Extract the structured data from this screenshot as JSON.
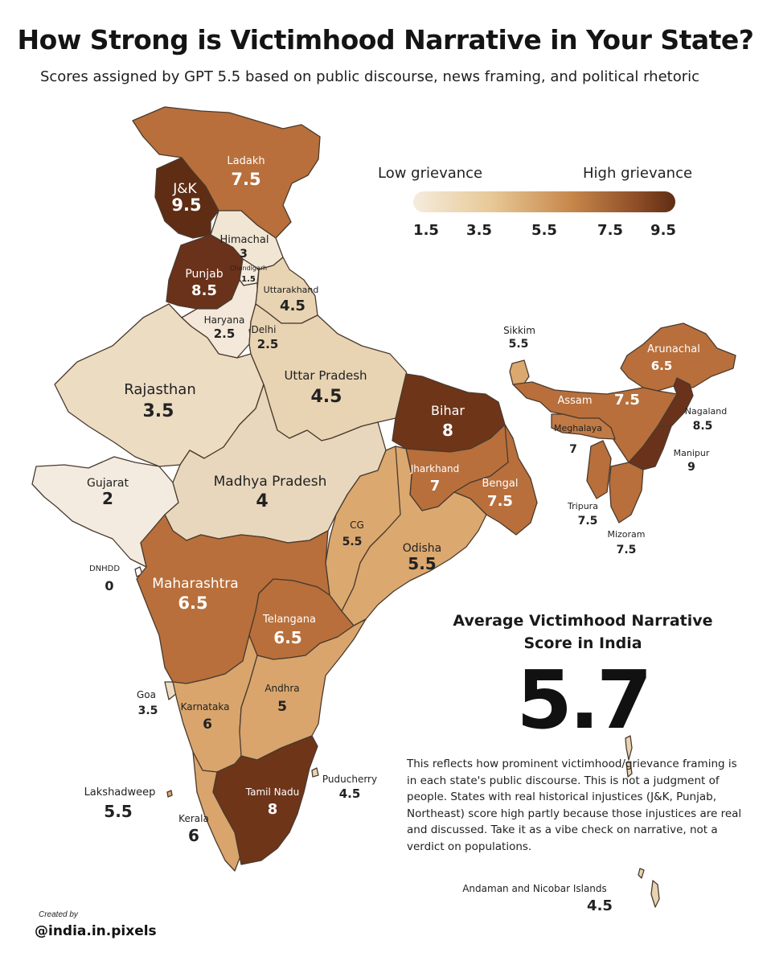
{
  "title": "How Strong is Victimhood Narrative in Your State?",
  "subtitle": "Scores assigned by GPT 5.5 based on public discourse, news framing, and political rhetoric",
  "legend": {
    "low_label": "Low grievance",
    "high_label": "High grievance",
    "ticks": [
      "1.5",
      "3.5",
      "5.5",
      "7.5",
      "9.5"
    ],
    "color_stops": [
      "#f5ecdd",
      "#e7c896",
      "#c7884c",
      "#8f4e27",
      "#5e2d14"
    ]
  },
  "average": {
    "title": "Average Victimhood Narrative Score in India",
    "value": "5.7"
  },
  "note": "This reflects how prominent victimhood/grievance framing is in each state's public discourse. This is not a judgment of people. States with real historical injustices (J&K, Punjab, Northeast) score high partly because those injustices are real and discussed. Take it as a vibe check on narrative, not a verdict on populations.",
  "credit": {
    "created_by": "Created by",
    "handle": "@india.in.pixels"
  },
  "regions": [
    {
      "id": "ladakh",
      "name": "Ladakh",
      "score": "7.5",
      "color": "#b86f3b"
    },
    {
      "id": "jk",
      "name": "J&K",
      "score": "9.5",
      "color": "#5e2d14"
    },
    {
      "id": "himachal",
      "name": "Himachal",
      "score": "3",
      "color": "#f1e5d4"
    },
    {
      "id": "punjab",
      "name": "Punjab",
      "score": "8.5",
      "color": "#6a321a"
    },
    {
      "id": "chandigarh",
      "name": "Chandigarh",
      "score": "1.5",
      "color": "#f5ecdd"
    },
    {
      "id": "uttarakhand",
      "name": "Uttarakhand",
      "score": "4.5",
      "color": "#e8d4b3"
    },
    {
      "id": "haryana",
      "name": "Haryana",
      "score": "2.5",
      "color": "#f3e8d9"
    },
    {
      "id": "delhi",
      "name": "Delhi",
      "score": "2.5",
      "color": "#f3e8d9"
    },
    {
      "id": "rajasthan",
      "name": "Rajasthan",
      "score": "3.5",
      "color": "#ecdcc2"
    },
    {
      "id": "uttar_pradesh",
      "name": "Uttar Pradesh",
      "score": "4.5",
      "color": "#e8d4b3"
    },
    {
      "id": "bihar",
      "name": "Bihar",
      "score": "8",
      "color": "#6e3519"
    },
    {
      "id": "sikkim",
      "name": "Sikkim",
      "score": "5.5",
      "color": "#dba86f"
    },
    {
      "id": "arunachal",
      "name": "Arunachal",
      "score": "6.5",
      "color": "#b86f3b"
    },
    {
      "id": "assam",
      "name": "Assam",
      "score": "7.5",
      "color": "#b86f3b"
    },
    {
      "id": "meghalaya",
      "name": "Meghalaya",
      "score": "7",
      "color": "#c07a45"
    },
    {
      "id": "nagaland",
      "name": "Nagaland",
      "score": "8.5",
      "color": "#6a321a"
    },
    {
      "id": "manipur",
      "name": "Manipur",
      "score": "9",
      "color": "#6a321a"
    },
    {
      "id": "tripura",
      "name": "Tripura",
      "score": "7.5",
      "color": "#b86f3b"
    },
    {
      "id": "mizoram",
      "name": "Mizoram",
      "score": "7.5",
      "color": "#b86f3b"
    },
    {
      "id": "gujarat",
      "name": "Gujarat",
      "score": "2",
      "color": "#f3ebdf"
    },
    {
      "id": "madhya_pradesh",
      "name": "Madhya Pradesh",
      "score": "4",
      "color": "#e8d7bc"
    },
    {
      "id": "jharkhand",
      "name": "Jharkhand",
      "score": "7",
      "color": "#b86f3b"
    },
    {
      "id": "bengal",
      "name": "Bengal",
      "score": "7.5",
      "color": "#b86f3b"
    },
    {
      "id": "dnhdd",
      "name": "DNHDD",
      "score": "0",
      "color": "#ffffff"
    },
    {
      "id": "cg",
      "name": "CG",
      "score": "5.5",
      "color": "#dba86f"
    },
    {
      "id": "odisha",
      "name": "Odisha",
      "score": "5.5",
      "color": "#dba86f"
    },
    {
      "id": "maharashtra",
      "name": "Maharashtra",
      "score": "6.5",
      "color": "#b86f3b"
    },
    {
      "id": "telangana",
      "name": "Telangana",
      "score": "6.5",
      "color": "#b86f3b"
    },
    {
      "id": "goa",
      "name": "Goa",
      "score": "3.5",
      "color": "#ecdcc2"
    },
    {
      "id": "karnataka",
      "name": "Karnataka",
      "score": "6",
      "color": "#d9a56c"
    },
    {
      "id": "andhra",
      "name": "Andhra",
      "score": "5",
      "color": "#d9a56c"
    },
    {
      "id": "lakshadweep",
      "name": "Lakshadweep",
      "score": "5.5",
      "color": "#dba86f"
    },
    {
      "id": "kerala",
      "name": "Kerala",
      "score": "6",
      "color": "#d9a56c"
    },
    {
      "id": "tamil_nadu",
      "name": "Tamil Nadu",
      "score": "8",
      "color": "#6e3519"
    },
    {
      "id": "puducherry",
      "name": "Puducherry",
      "score": "4.5",
      "color": "#e8d4b3"
    },
    {
      "id": "andaman",
      "name": "Andaman and Nicobar Islands",
      "score": "4.5",
      "color": "#e8d4b3"
    }
  ]
}
